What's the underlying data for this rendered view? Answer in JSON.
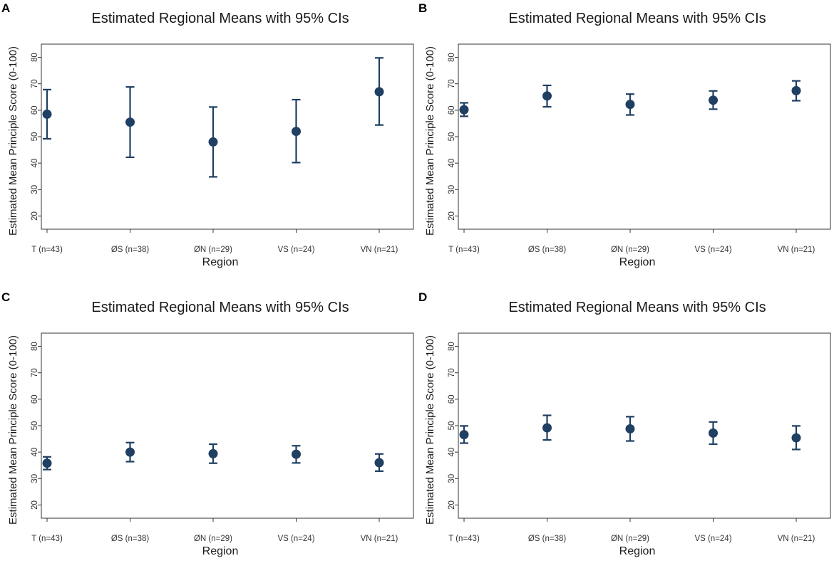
{
  "colors": {
    "marker": "#1f3f63",
    "axis": "#333333",
    "background": "#ffffff"
  },
  "panels": [
    {
      "letter": "A"
    },
    {
      "letter": "B"
    },
    {
      "letter": "C"
    },
    {
      "letter": "D"
    }
  ],
  "chart_data": [
    {
      "panel": "A",
      "type": "scatter",
      "title": "Estimated Regional Means with 95% CIs",
      "xlabel": "Region",
      "ylabel": "Estimated Mean Principle Score (0-100)",
      "ylim": [
        15,
        85
      ],
      "yticks": [
        20,
        30,
        40,
        50,
        60,
        70,
        80
      ],
      "categories": [
        "T (n=43)",
        "ØS (n=38)",
        "ØN (n=29)",
        "VS (n=24)",
        "VN (n=21)"
      ],
      "values": [
        58.5,
        55.5,
        48,
        52,
        67
      ],
      "ci_low": [
        49.2,
        42.2,
        34.8,
        40.2,
        54.4
      ],
      "ci_high": [
        67.8,
        68.8,
        61.2,
        64,
        79.8
      ]
    },
    {
      "panel": "B",
      "type": "scatter",
      "title": "Estimated Regional Means with 95% CIs",
      "xlabel": "Region",
      "ylabel": "Estimated Mean Principle Score (0-100)",
      "ylim": [
        15,
        85
      ],
      "yticks": [
        20,
        30,
        40,
        50,
        60,
        70,
        80
      ],
      "categories": [
        "T (n=43)",
        "ØS (n=38)",
        "ØN (n=29)",
        "VS (n=24)",
        "VN (n=21)"
      ],
      "values": [
        60.2,
        65.4,
        62.2,
        63.8,
        67.4
      ],
      "ci_low": [
        57.7,
        61.3,
        58.2,
        60.4,
        63.6
      ],
      "ci_high": [
        62.8,
        69.4,
        66.1,
        67.3,
        71.1
      ]
    },
    {
      "panel": "C",
      "type": "scatter",
      "title": "Estimated Regional Means with 95% CIs",
      "xlabel": "Region",
      "ylabel": "Estimated Mean Principle Score (0-100)",
      "ylim": [
        15,
        85
      ],
      "yticks": [
        20,
        30,
        40,
        50,
        60,
        70,
        80
      ],
      "categories": [
        "T (n=43)",
        "ØS (n=38)",
        "ØN (n=29)",
        "VS (n=24)",
        "VN (n=21)"
      ],
      "values": [
        35.8,
        40,
        39.4,
        39.2,
        36
      ],
      "ci_low": [
        33.4,
        36.4,
        35.8,
        35.9,
        32.8
      ],
      "ci_high": [
        38.2,
        43.6,
        43,
        42.4,
        39.3
      ]
    },
    {
      "panel": "D",
      "type": "scatter",
      "title": "Estimated Regional Means with 95% CIs",
      "xlabel": "Region",
      "ylabel": "Estimated Mean Principle Score (0-100)",
      "ylim": [
        15,
        85
      ],
      "yticks": [
        20,
        30,
        40,
        50,
        60,
        70,
        80
      ],
      "categories": [
        "T (n=43)",
        "ØS (n=38)",
        "ØN (n=29)",
        "VS (n=24)",
        "VN (n=21)"
      ],
      "values": [
        46.6,
        49.2,
        48.8,
        47.2,
        45.4
      ],
      "ci_low": [
        43.4,
        44.6,
        44.2,
        43,
        41
      ],
      "ci_high": [
        49.9,
        53.9,
        53.4,
        51.4,
        49.9
      ]
    }
  ]
}
